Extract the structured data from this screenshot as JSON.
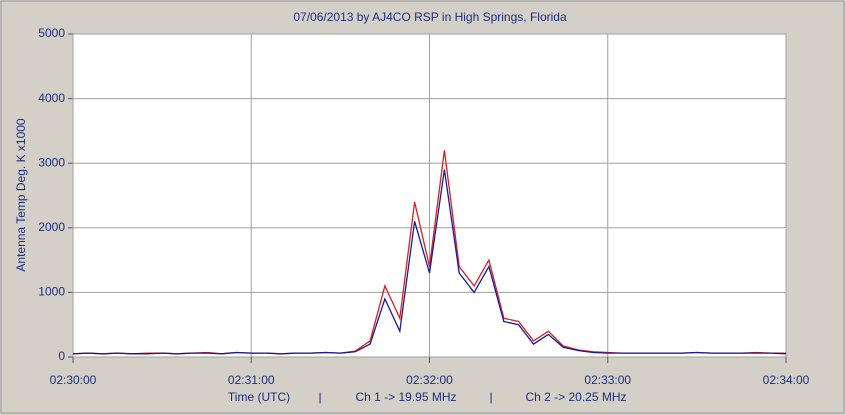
{
  "chart_data": {
    "type": "line",
    "title": "07/06/2013  by  AJ4CO RSP  in  High Springs, Florida",
    "ylabel": "Antenna Temp Deg. K x1000",
    "xlabel": "Time (UTC)",
    "separator": "|",
    "x": [
      "02:30:00",
      "02:30:05",
      "02:30:10",
      "02:30:15",
      "02:30:20",
      "02:30:25",
      "02:30:30",
      "02:30:35",
      "02:30:40",
      "02:30:45",
      "02:30:50",
      "02:30:55",
      "02:31:00",
      "02:31:05",
      "02:31:10",
      "02:31:15",
      "02:31:20",
      "02:31:25",
      "02:31:30",
      "02:31:35",
      "02:31:40",
      "02:31:45",
      "02:31:50",
      "02:31:55",
      "02:32:00",
      "02:32:05",
      "02:32:10",
      "02:32:15",
      "02:32:20",
      "02:32:25",
      "02:32:30",
      "02:32:35",
      "02:32:40",
      "02:32:45",
      "02:32:50",
      "02:32:55",
      "02:33:00",
      "02:33:05",
      "02:33:10",
      "02:33:15",
      "02:33:20",
      "02:33:25",
      "02:33:30",
      "02:33:35",
      "02:33:40",
      "02:33:45",
      "02:33:50",
      "02:33:55",
      "02:34:00"
    ],
    "series": [
      {
        "name": "Ch 1 -> 19.95 MHz",
        "color": "#d42020",
        "values": [
          50,
          60,
          50,
          60,
          50,
          60,
          60,
          50,
          60,
          70,
          50,
          70,
          60,
          60,
          50,
          60,
          60,
          70,
          60,
          90,
          250,
          1100,
          600,
          2400,
          1400,
          3200,
          1400,
          1100,
          1500,
          600,
          550,
          250,
          400,
          170,
          110,
          80,
          70,
          60,
          60,
          60,
          60,
          60,
          70,
          60,
          60,
          60,
          70,
          60,
          60
        ]
      },
      {
        "name": "Ch 2 -> 20.25 MHz",
        "color": "#1a1a9a",
        "values": [
          50,
          60,
          50,
          60,
          50,
          50,
          60,
          50,
          60,
          60,
          50,
          70,
          60,
          60,
          50,
          60,
          60,
          70,
          60,
          80,
          200,
          900,
          400,
          2100,
          1300,
          2900,
          1300,
          1000,
          1400,
          550,
          500,
          200,
          350,
          150,
          100,
          70,
          60,
          60,
          60,
          60,
          60,
          60,
          70,
          60,
          60,
          60,
          60,
          60,
          50
        ]
      }
    ],
    "xlim": [
      "02:30:00",
      "02:34:00"
    ],
    "xticks": [
      "02:30:00",
      "02:31:00",
      "02:32:00",
      "02:33:00",
      "02:34:00"
    ],
    "ylim": [
      0,
      5000
    ],
    "yticks": [
      0,
      1000,
      2000,
      3000,
      4000,
      5000
    ],
    "grid": true
  }
}
